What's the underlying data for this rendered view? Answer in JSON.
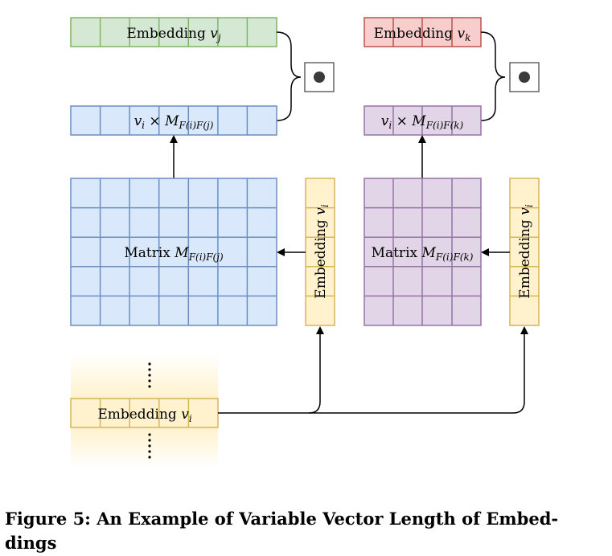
{
  "diagram": {
    "embedding_vj": {
      "label": "Embedding",
      "var": "v",
      "sub": "j",
      "fill": "#d5e8d4",
      "stroke": "#82b366"
    },
    "embedding_vk": {
      "label": "Embedding",
      "var": "v",
      "sub": "k",
      "fill": "#f8cecc",
      "stroke": "#b85450"
    },
    "product_left": {
      "var": "v",
      "sub": "i",
      "op": "×",
      "mvar": "M",
      "msub": "F(i)F(j)",
      "fill": "#dae8fc",
      "stroke": "#6c8ebf"
    },
    "product_right": {
      "var": "v",
      "sub": "i",
      "op": "×",
      "mvar": "M",
      "msub": "F(i)F(k)",
      "fill": "#e1d5e7",
      "stroke": "#9673a6"
    },
    "matrix_left": {
      "label": "Matrix",
      "mvar": "M",
      "msub": "F(i)F(j)",
      "fill": "#dae8fc",
      "stroke": "#6c8ebf"
    },
    "matrix_right": {
      "label": "Matrix",
      "mvar": "M",
      "msub": "F(i)F(k)",
      "fill": "#e1d5e7",
      "stroke": "#9673a6"
    },
    "vertical_left": {
      "label": "Embedding",
      "var": "v",
      "sub": "i",
      "fill": "#fff2cc",
      "stroke": "#d6b656"
    },
    "vertical_right": {
      "label": "Embedding",
      "var": "v",
      "sub": "i",
      "fill": "#fff2cc",
      "stroke": "#d6b656"
    },
    "bottom_embedding": {
      "label": "Embedding",
      "var": "v",
      "sub": "i",
      "fill": "#fff2cc",
      "stroke": "#d6b656"
    },
    "dot_symbol": "●",
    "ellipsis_dots": "⋮"
  },
  "caption": {
    "line1": "Figure 5: An Example of Variable Vector Length of Embed-",
    "line2": "dings"
  }
}
